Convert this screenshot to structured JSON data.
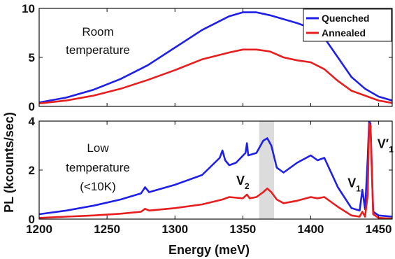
{
  "chart_data": [
    {
      "type": "line",
      "panel": "Room temperature",
      "annotation": [
        "Room",
        "temperature"
      ],
      "xlim": [
        1200,
        1460
      ],
      "ylim": [
        0,
        10
      ],
      "yticks": [
        "0",
        "5",
        "10"
      ],
      "xlabel": "",
      "legend": {
        "placement": "top-right",
        "entries": [
          "Quenched",
          "Annealed"
        ]
      },
      "series": [
        {
          "name": "Quenched",
          "color": "#1f1fe6",
          "x": [
            1200,
            1220,
            1240,
            1260,
            1280,
            1300,
            1320,
            1340,
            1350,
            1360,
            1370,
            1380,
            1390,
            1400,
            1410,
            1420,
            1430,
            1440,
            1450,
            1460
          ],
          "y": [
            0.4,
            0.9,
            1.7,
            2.8,
            4.2,
            6.0,
            7.8,
            9.2,
            9.6,
            9.6,
            9.3,
            8.9,
            8.5,
            8.0,
            7.0,
            5.0,
            3.0,
            1.8,
            1.0,
            0.6
          ]
        },
        {
          "name": "Annealed",
          "color": "#e61e1e",
          "x": [
            1200,
            1220,
            1240,
            1260,
            1280,
            1300,
            1320,
            1340,
            1350,
            1360,
            1370,
            1380,
            1390,
            1400,
            1410,
            1420,
            1430,
            1440,
            1450,
            1460
          ],
          "y": [
            0.3,
            0.6,
            1.1,
            1.8,
            2.7,
            3.7,
            4.8,
            5.5,
            5.8,
            5.8,
            5.6,
            5.0,
            4.7,
            4.5,
            3.8,
            2.6,
            1.6,
            1.1,
            0.6,
            0.35
          ]
        }
      ]
    },
    {
      "type": "line",
      "panel": "Low temperature",
      "annotation": [
        "Low",
        "temperature",
        "(<10K)"
      ],
      "xlim": [
        1200,
        1460
      ],
      "ylim": [
        0,
        4
      ],
      "yticks": [
        "0",
        "2",
        "4"
      ],
      "xticks": [
        "1200",
        "1250",
        "1300",
        "1350",
        "1400",
        "1450"
      ],
      "xlabel": "Energy (meV)",
      "highlight_band": [
        1362,
        1373
      ],
      "peak_labels": [
        {
          "text": "V",
          "sub": "2",
          "x": 1350,
          "y": 1.4
        },
        {
          "text": "V",
          "sub": "1",
          "x": 1432,
          "y": 1.3
        },
        {
          "text": "V′",
          "sub": "1",
          "x": 1455,
          "y": 2.9
        }
      ],
      "series": [
        {
          "name": "Quenched",
          "color": "#1f1fe6",
          "x": [
            1200,
            1220,
            1240,
            1260,
            1275,
            1278,
            1281,
            1300,
            1320,
            1333,
            1335,
            1337,
            1340,
            1345,
            1352,
            1353,
            1354,
            1360,
            1365,
            1368,
            1371,
            1375,
            1380,
            1390,
            1400,
            1405,
            1410,
            1420,
            1430,
            1436,
            1438,
            1440,
            1442,
            1443,
            1444,
            1446,
            1450,
            1460
          ],
          "y": [
            0.2,
            0.35,
            0.55,
            0.8,
            1.05,
            1.3,
            1.1,
            1.4,
            1.8,
            2.5,
            2.8,
            2.4,
            2.2,
            2.3,
            2.7,
            3.1,
            2.6,
            2.7,
            3.2,
            3.3,
            3.0,
            2.1,
            1.9,
            2.3,
            2.6,
            2.4,
            2.5,
            1.3,
            0.45,
            0.35,
            1.2,
            0.4,
            2.5,
            4.0,
            3.9,
            0.3,
            0.15,
            0.1
          ]
        },
        {
          "name": "Annealed",
          "color": "#e61e1e",
          "x": [
            1200,
            1220,
            1240,
            1260,
            1275,
            1278,
            1281,
            1300,
            1320,
            1335,
            1340,
            1350,
            1353,
            1355,
            1360,
            1365,
            1368,
            1371,
            1375,
            1380,
            1390,
            1400,
            1405,
            1410,
            1420,
            1430,
            1436,
            1438,
            1440,
            1442,
            1443,
            1444,
            1446,
            1450,
            1460
          ],
          "y": [
            0.05,
            0.1,
            0.15,
            0.22,
            0.3,
            0.42,
            0.35,
            0.45,
            0.6,
            0.8,
            0.9,
            0.85,
            1.0,
            0.85,
            0.9,
            1.1,
            1.25,
            1.1,
            0.8,
            0.65,
            0.75,
            0.9,
            0.85,
            0.9,
            0.5,
            0.15,
            0.1,
            0.3,
            0.1,
            1.0,
            3.9,
            3.8,
            0.2,
            0.05,
            0.02
          ]
        }
      ]
    }
  ],
  "ylabel": "PL (kcounts/sec)"
}
